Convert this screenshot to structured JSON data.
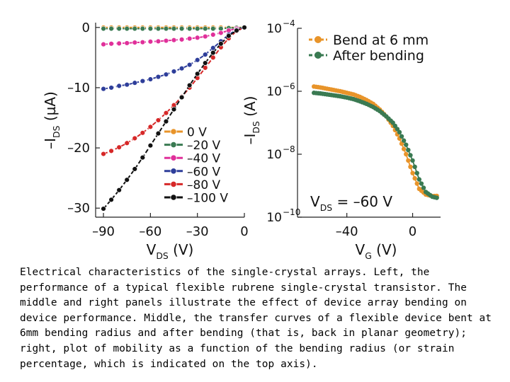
{
  "chart_data": [
    {
      "type": "line",
      "xlabel": "V",
      "xlabel_sub": "DS",
      "xlabel_unit": " (V)",
      "ylabel_pre": "–I",
      "ylabel_sub": "DS",
      "ylabel_unit": " (µA)",
      "xlim": [
        -95,
        0
      ],
      "ylim": [
        -31.5,
        0.8
      ],
      "x_ticks": [
        -90,
        -60,
        -30,
        0
      ],
      "x_tick_labels": [
        "–90",
        "–60",
        "–30",
        "0"
      ],
      "y_ticks": [
        0,
        -10,
        -20,
        -30
      ],
      "y_tick_labels": [
        "0",
        "–10",
        "–20",
        "–30"
      ],
      "legend_position": "bottom-right",
      "series": [
        {
          "name": "0 V",
          "color": "#e8942a",
          "x": [
            -90,
            -85,
            -80,
            -75,
            -70,
            -65,
            -60,
            -55,
            -50,
            -45,
            -40,
            -35,
            -30,
            -25,
            -20,
            -15,
            -10,
            -5,
            0
          ],
          "y": [
            0,
            0,
            0,
            0,
            0,
            0,
            0,
            0,
            0,
            0,
            0,
            0,
            0,
            0,
            0,
            0,
            0,
            0,
            0
          ]
        },
        {
          "name": "–20 V",
          "color": "#3a7a52",
          "x": [
            -90,
            -85,
            -80,
            -75,
            -70,
            -65,
            -60,
            -55,
            -50,
            -45,
            -40,
            -35,
            -30,
            -25,
            -20,
            -15,
            -10,
            -5,
            0
          ],
          "y": [
            -0.2,
            -0.2,
            -0.2,
            -0.2,
            -0.2,
            -0.2,
            -0.2,
            -0.2,
            -0.2,
            -0.2,
            -0.2,
            -0.2,
            -0.2,
            -0.2,
            -0.2,
            -0.2,
            -0.1,
            -0.05,
            0
          ]
        },
        {
          "name": "–40 V",
          "color": "#e0309a",
          "x": [
            -90,
            -85,
            -80,
            -75,
            -70,
            -65,
            -60,
            -55,
            -50,
            -45,
            -40,
            -35,
            -30,
            -25,
            -20,
            -15,
            -10,
            -5,
            0
          ],
          "y": [
            -2.8,
            -2.7,
            -2.65,
            -2.6,
            -2.5,
            -2.45,
            -2.35,
            -2.3,
            -2.2,
            -2.1,
            -2.0,
            -1.85,
            -1.7,
            -1.5,
            -1.2,
            -0.9,
            -0.5,
            -0.2,
            0
          ]
        },
        {
          "name": "–60 V",
          "color": "#2e3e9a",
          "x": [
            -90,
            -85,
            -80,
            -75,
            -70,
            -65,
            -60,
            -55,
            -50,
            -45,
            -40,
            -35,
            -30,
            -25,
            -20,
            -15,
            -10,
            -5,
            0
          ],
          "y": [
            -10.2,
            -10.0,
            -9.7,
            -9.5,
            -9.2,
            -8.9,
            -8.6,
            -8.2,
            -7.8,
            -7.3,
            -6.8,
            -6.2,
            -5.4,
            -4.5,
            -3.4,
            -2.3,
            -1.2,
            -0.4,
            0
          ]
        },
        {
          "name": "–80 V",
          "color": "#d62828",
          "x": [
            -90,
            -85,
            -80,
            -75,
            -70,
            -65,
            -60,
            -55,
            -50,
            -45,
            -40,
            -35,
            -30,
            -25,
            -20,
            -15,
            -10,
            -5,
            0
          ],
          "y": [
            -21.0,
            -20.5,
            -19.9,
            -19.2,
            -18.4,
            -17.5,
            -16.5,
            -15.4,
            -14.2,
            -12.9,
            -11.5,
            -10.0,
            -8.4,
            -6.7,
            -5.0,
            -3.3,
            -1.8,
            -0.6,
            0
          ]
        },
        {
          "name": "–100 V",
          "color": "#111111",
          "x": [
            -90,
            -85,
            -80,
            -75,
            -70,
            -65,
            -60,
            -55,
            -50,
            -45,
            -40,
            -35,
            -30,
            -25,
            -20,
            -15,
            -10,
            -5,
            0
          ],
          "y": [
            -30.1,
            -28.6,
            -27.0,
            -25.3,
            -23.5,
            -21.6,
            -19.6,
            -17.6,
            -15.6,
            -13.6,
            -11.6,
            -9.6,
            -7.7,
            -5.9,
            -4.2,
            -2.7,
            -1.4,
            -0.5,
            0
          ]
        }
      ]
    },
    {
      "type": "line",
      "scale_y": "log",
      "xlabel": "V",
      "xlabel_sub": "G",
      "xlabel_unit": " (V)",
      "ylabel_pre": "–I",
      "ylabel_sub": "DS",
      "ylabel_unit": " (A)",
      "xlim": [
        -70,
        17
      ],
      "ylim_exp": [
        -10,
        -4
      ],
      "x_ticks": [
        -40,
        0
      ],
      "x_tick_labels": [
        "–40",
        "0"
      ],
      "y_tick_exps": [
        -4,
        -6,
        -8,
        -10
      ],
      "y_tick_base": "10",
      "legend_position": "top-right",
      "annotation": {
        "pre": "V",
        "sub": "DS",
        "post": " = –60 V"
      },
      "series": [
        {
          "name": "Bend at 6 mm",
          "color": "#e8942a",
          "x": [
            -60,
            -56,
            -52,
            -48,
            -44,
            -40,
            -36,
            -32,
            -28,
            -24,
            -20,
            -16,
            -12,
            -8,
            -4,
            0,
            4,
            8,
            12,
            16
          ],
          "y_exp": [
            -5.85,
            -5.88,
            -5.92,
            -5.96,
            -6.0,
            -6.05,
            -6.1,
            -6.18,
            -6.28,
            -6.4,
            -6.58,
            -6.8,
            -7.1,
            -7.5,
            -8.0,
            -8.6,
            -9.1,
            -9.28,
            -9.33,
            -9.32
          ]
        },
        {
          "name": "After bending",
          "color": "#3a7a52",
          "x": [
            -60,
            -56,
            -52,
            -48,
            -44,
            -40,
            -36,
            -32,
            -28,
            -24,
            -20,
            -16,
            -12,
            -8,
            -4,
            0,
            4,
            8,
            12,
            16
          ],
          "y_exp": [
            -6.05,
            -6.07,
            -6.1,
            -6.13,
            -6.16,
            -6.2,
            -6.25,
            -6.32,
            -6.4,
            -6.5,
            -6.63,
            -6.8,
            -7.0,
            -7.3,
            -7.7,
            -8.2,
            -8.8,
            -9.2,
            -9.35,
            -9.4
          ]
        }
      ]
    }
  ],
  "caption": "Electrical characteristics of the single-crystal arrays. Left, the performance of a typical flexible rubrene single-crystal transistor. The middle and right panels illustrate the effect of device array bending on device performance. Middle, the transfer curves of a flexible device bent at 6mm bending radius and after bending (that is, back in planar geometry); right, plot of mobility as a function of the bending radius (or strain percentage, which is indicated on the top axis)."
}
